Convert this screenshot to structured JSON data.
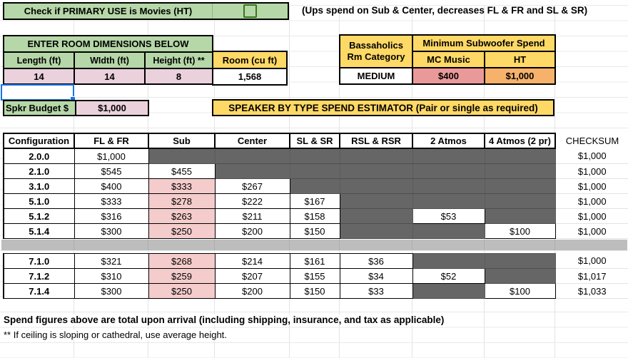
{
  "colors": {
    "green": "#b6d7a8",
    "pink_input": "#ead1dc",
    "yellow": "#ffd966",
    "red": "#ea9999",
    "orange": "#f6b26b",
    "sub_pink": "#f4cccc",
    "blocked_dark": "#666666",
    "separator_gray": "#bdbdbd",
    "selection_blue": "#1a73e8",
    "checkbox_green": "#38761d"
  },
  "top": {
    "banner": "Check if PRIMARY USE is Movies (HT)",
    "checkbox_checked": false,
    "note": "(Ups spend on Sub & Center, decreases FL & FR and SL & SR)"
  },
  "room": {
    "header": "ENTER ROOM DIMENSIONS BELOW",
    "col_labels": [
      "Length (ft)",
      "WIdth (ft)",
      "Height (ft) **"
    ],
    "values": [
      "14",
      "14",
      "8"
    ],
    "volume_label": "Room (cu ft)",
    "volume_value": "1,568"
  },
  "bass": {
    "category_line1": "Bassaholics",
    "category_line2": "Rm Category",
    "min_header": "Minimum Subwoofer Spend",
    "mc_label": "MC Music",
    "ht_label": "HT",
    "category_value": "MEDIUM",
    "mc_value": "$400",
    "ht_value": "$1,000"
  },
  "budget": {
    "label": "Spkr Budget $",
    "value": "$1,000"
  },
  "estimator_title": "SPEAKER BY TYPE SPEND ESTIMATOR (Pair or single as required)",
  "table": {
    "headers": [
      "Configuration",
      "FL & FR",
      "Sub",
      "Center",
      "SL & SR",
      "RSL & RSR",
      "2 Atmos",
      "4 Atmos (2 pr)"
    ],
    "checksum_header": "CHECKSUM",
    "rows_a": [
      {
        "config": "2.0.0",
        "cells": [
          {
            "v": "$1,000"
          },
          {
            "s": "d"
          },
          {
            "s": "d"
          },
          {
            "s": "d"
          },
          {
            "s": "d"
          },
          {
            "s": "d"
          },
          {
            "s": "d"
          }
        ],
        "checksum": "$1,000"
      },
      {
        "config": "2.1.0",
        "cells": [
          {
            "v": "$545"
          },
          {
            "v": "$455"
          },
          {
            "s": "d"
          },
          {
            "s": "d"
          },
          {
            "s": "d"
          },
          {
            "s": "d"
          },
          {
            "s": "d"
          }
        ],
        "checksum": "$1,000"
      },
      {
        "config": "3.1.0",
        "cells": [
          {
            "v": "$400"
          },
          {
            "v": "$333",
            "s": "p"
          },
          {
            "v": "$267"
          },
          {
            "s": "d"
          },
          {
            "s": "d"
          },
          {
            "s": "d"
          },
          {
            "s": "d"
          }
        ],
        "checksum": "$1,000"
      },
      {
        "config": "5.1.0",
        "cells": [
          {
            "v": "$333"
          },
          {
            "v": "$278",
            "s": "p"
          },
          {
            "v": "$222"
          },
          {
            "v": "$167"
          },
          {
            "s": "d"
          },
          {
            "s": "d"
          },
          {
            "s": "d"
          }
        ],
        "checksum": "$1,000"
      },
      {
        "config": "5.1.2",
        "cells": [
          {
            "v": "$316"
          },
          {
            "v": "$263",
            "s": "p"
          },
          {
            "v": "$211"
          },
          {
            "v": "$158"
          },
          {
            "s": "d"
          },
          {
            "v": "$53"
          },
          {
            "s": "d"
          }
        ],
        "checksum": "$1,000"
      },
      {
        "config": "5.1.4",
        "cells": [
          {
            "v": "$300"
          },
          {
            "v": "$250",
            "s": "p"
          },
          {
            "v": "$200"
          },
          {
            "v": "$150"
          },
          {
            "s": "d"
          },
          {
            "s": "d"
          },
          {
            "v": "$100"
          }
        ],
        "checksum": "$1,000"
      }
    ],
    "rows_b": [
      {
        "config": "7.1.0",
        "cells": [
          {
            "v": "$321"
          },
          {
            "v": "$268",
            "s": "p"
          },
          {
            "v": "$214"
          },
          {
            "v": "$161"
          },
          {
            "v": "$36"
          },
          {
            "s": "d"
          },
          {
            "s": "d"
          }
        ],
        "checksum": "$1,000"
      },
      {
        "config": "7.1.2",
        "cells": [
          {
            "v": "$310"
          },
          {
            "v": "$259",
            "s": "p"
          },
          {
            "v": "$207"
          },
          {
            "v": "$155"
          },
          {
            "v": "$34"
          },
          {
            "v": "$52"
          },
          {
            "s": "d"
          }
        ],
        "checksum": "$1,017"
      },
      {
        "config": "7.1.4",
        "cells": [
          {
            "v": "$300"
          },
          {
            "v": "$250",
            "s": "p"
          },
          {
            "v": "$200"
          },
          {
            "v": "$150"
          },
          {
            "v": "$33"
          },
          {
            "s": "d"
          },
          {
            "v": "$100"
          }
        ],
        "checksum": "$1,033"
      }
    ]
  },
  "notes": {
    "line1": "Spend figures above are total upon arrival (including shipping, insurance, and tax as applicable)",
    "line2": "** If ceiling is sloping or cathedral, use average height."
  }
}
